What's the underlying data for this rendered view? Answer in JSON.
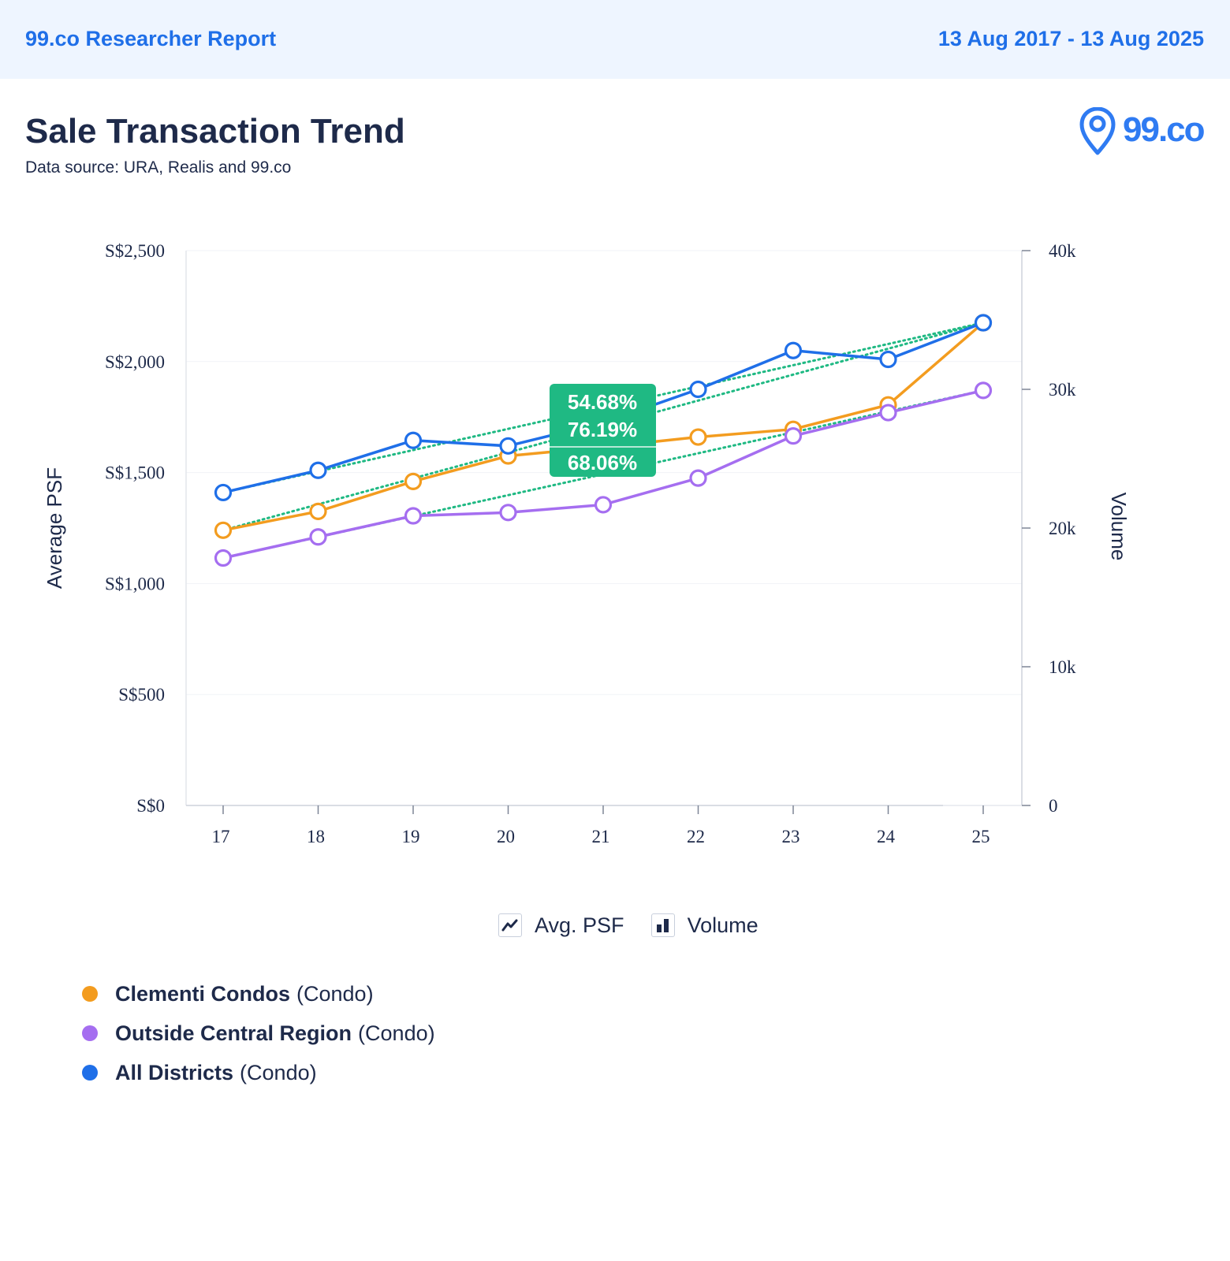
{
  "header": {
    "brand": "99.co Researcher Report",
    "date_range": "13 Aug 2017 - 13 Aug 2025"
  },
  "title": "Sale Transaction Trend",
  "subtitle": "Data source: URA, Realis and 99.co",
  "logo_text": "99.co",
  "toggles": [
    {
      "label": "Avg. PSF",
      "icon": "line-chart-icon"
    },
    {
      "label": "Volume",
      "icon": "bar-chart-icon"
    }
  ],
  "legend": [
    {
      "name": "Clementi Condos",
      "type": "(Condo)",
      "color": "#f39c1f"
    },
    {
      "name": "Outside Central Region",
      "type": "(Condo)",
      "color": "#a56ef0"
    },
    {
      "name": "All Districts",
      "type": "(Condo)",
      "color": "#1f6fe8"
    }
  ],
  "chart_data": {
    "type": "line",
    "title": "",
    "x": [
      "17",
      "18",
      "19",
      "20",
      "21",
      "22",
      "23",
      "24",
      "25"
    ],
    "ylabel": "Average PSF",
    "y2label": "Volume",
    "ylim": [
      0,
      2500
    ],
    "y_ticks": [
      0,
      500,
      1000,
      1500,
      2000,
      2500
    ],
    "y_tick_labels": [
      "S$0",
      "S$500",
      "S$1,000",
      "S$1,500",
      "S$2,000",
      "S$2,500"
    ],
    "y2lim": [
      0,
      40000
    ],
    "y2_ticks": [
      0,
      10000,
      20000,
      30000,
      40000
    ],
    "y2_tick_labels": [
      "0",
      "10k",
      "20k",
      "30k",
      "40k"
    ],
    "series": [
      {
        "name": "Clementi Condos",
        "color": "#f39c1f",
        "values": [
          1240,
          1325,
          1460,
          1575,
          1615,
          1660,
          1695,
          1805,
          2175
        ]
      },
      {
        "name": "Outside Central Region",
        "color": "#a56ef0",
        "values": [
          1115,
          1210,
          1305,
          1320,
          1355,
          1475,
          1665,
          1770,
          1870
        ]
      },
      {
        "name": "All Districts",
        "color": "#1f6fe8",
        "values": [
          1410,
          1510,
          1645,
          1620,
          1725,
          1875,
          2050,
          2010,
          2175
        ]
      }
    ],
    "growth_labels": [
      "54.68%",
      "76.19%",
      "68.06%"
    ],
    "trend_color": "#1fb983",
    "grid": true
  }
}
